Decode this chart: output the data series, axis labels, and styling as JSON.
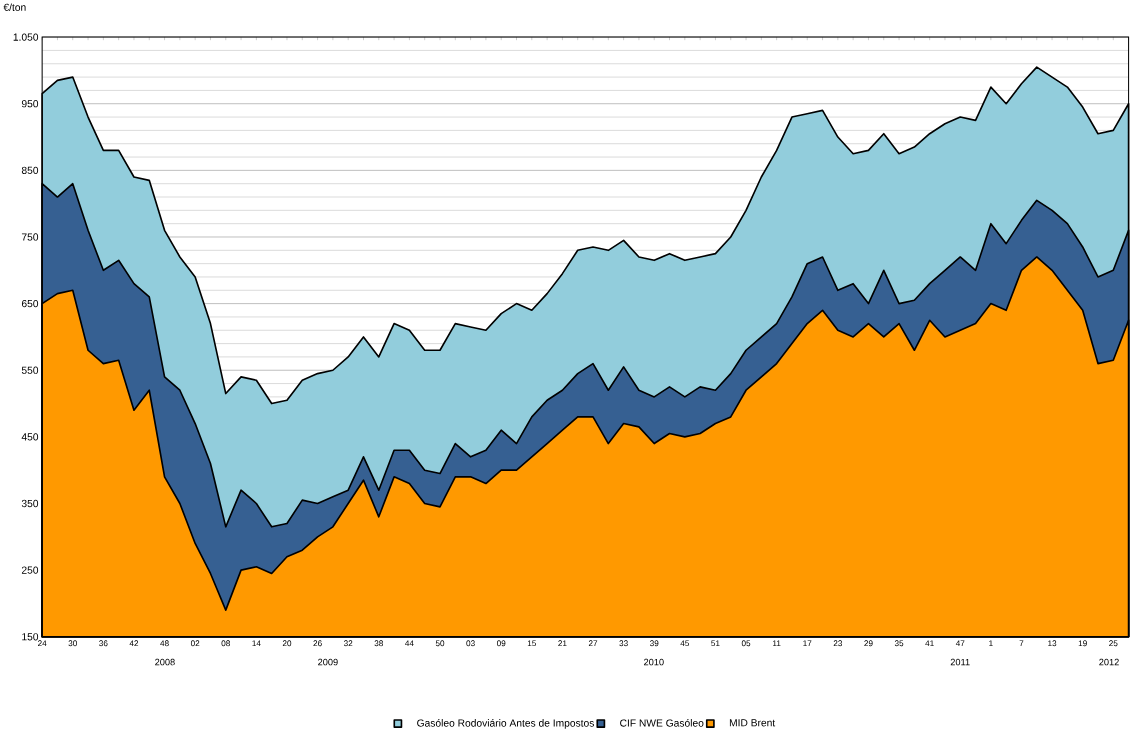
{
  "chart_data": {
    "type": "area",
    "ylabel": "€/ton",
    "categories": [
      "24",
      null,
      "30",
      null,
      "36",
      null,
      "42",
      null,
      "48",
      null,
      "02",
      null,
      "08",
      null,
      "14",
      null,
      "20",
      null,
      "26",
      null,
      "32",
      null,
      "38",
      null,
      "44",
      null,
      "50",
      null,
      "03",
      null,
      "09",
      null,
      "15",
      null,
      "21",
      null,
      "27",
      null,
      "33",
      null,
      "39",
      null,
      "45",
      null,
      "51",
      null,
      "05",
      null,
      "11",
      null,
      "17",
      null,
      "23",
      null,
      "29",
      null,
      "35",
      null,
      "41",
      null,
      "47",
      null,
      "1",
      null,
      "7",
      null,
      "13",
      null,
      "19",
      null,
      "25",
      null
    ],
    "series": [
      {
        "name": "Gasóleo Rodoviário Antes de Impostos",
        "color": "#92cddc",
        "values": [
          965,
          985,
          990,
          930,
          880,
          880,
          840,
          835,
          760,
          720,
          690,
          620,
          515,
          540,
          535,
          500,
          505,
          535,
          545,
          550,
          570,
          600,
          570,
          620,
          610,
          580,
          580,
          620,
          615,
          610,
          635,
          650,
          640,
          665,
          695,
          730,
          735,
          730,
          745,
          720,
          715,
          725,
          715,
          720,
          725,
          750,
          790,
          840,
          880,
          930,
          935,
          940,
          900,
          875,
          880,
          905,
          875,
          885,
          905,
          920,
          930,
          925,
          975,
          950,
          980,
          1005,
          990,
          975,
          945,
          905,
          910,
          950
        ]
      },
      {
        "name": "CIF NWE Gasóleo",
        "color": "#366092",
        "values": [
          830,
          810,
          830,
          760,
          700,
          715,
          680,
          660,
          540,
          520,
          470,
          410,
          315,
          370,
          350,
          315,
          320,
          355,
          350,
          360,
          370,
          420,
          370,
          430,
          430,
          400,
          395,
          440,
          420,
          430,
          460,
          440,
          480,
          505,
          520,
          545,
          560,
          520,
          555,
          520,
          510,
          525,
          510,
          525,
          520,
          545,
          580,
          600,
          620,
          660,
          710,
          720,
          670,
          680,
          650,
          700,
          650,
          655,
          680,
          700,
          720,
          700,
          770,
          740,
          775,
          805,
          790,
          770,
          735,
          690,
          700,
          760
        ]
      },
      {
        "name": "MID Brent",
        "color": "#ff9900",
        "values": [
          650,
          665,
          670,
          580,
          560,
          565,
          490,
          520,
          390,
          350,
          290,
          245,
          190,
          250,
          255,
          245,
          270,
          280,
          300,
          315,
          350,
          385,
          330,
          390,
          380,
          350,
          345,
          390,
          390,
          380,
          400,
          400,
          420,
          440,
          460,
          480,
          480,
          440,
          470,
          465,
          440,
          455,
          450,
          455,
          470,
          480,
          520,
          540,
          560,
          590,
          620,
          640,
          610,
          600,
          620,
          600,
          620,
          580,
          625,
          600,
          610,
          620,
          650,
          640,
          700,
          720,
          700,
          670,
          640,
          560,
          565,
          625
        ]
      }
    ],
    "ylim": [
      150,
      1050
    ],
    "yticks": [
      150,
      250,
      350,
      450,
      550,
      650,
      750,
      850,
      950,
      {
        "value": 1050,
        "label": "1.050"
      }
    ],
    "grid": "y",
    "legend": "bottom",
    "annotations": [
      "2008",
      "2009",
      "2010",
      "2011",
      "2012"
    ]
  }
}
